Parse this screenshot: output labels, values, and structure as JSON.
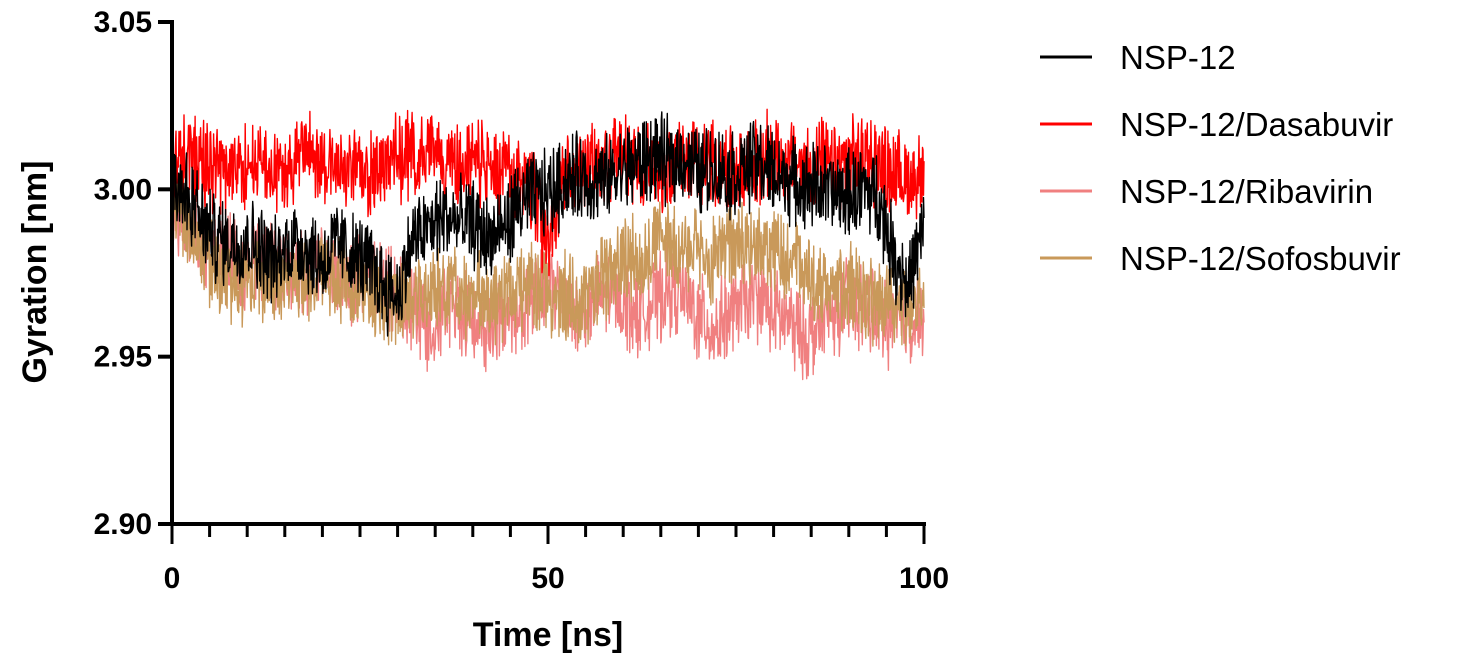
{
  "chart_data": {
    "type": "line",
    "xlabel": "Time [ns]",
    "ylabel": "Gyration [nm]",
    "xlim": [
      0,
      100
    ],
    "ylim": [
      2.9,
      3.05
    ],
    "x_ticks": [
      "0",
      "50",
      "100"
    ],
    "y_ticks": [
      "2.90",
      "2.95",
      "3.00",
      "3.05"
    ],
    "grid": false,
    "legend_position": "right",
    "series": [
      {
        "name": "NSP-12/Ribavirin",
        "color": "#F08080",
        "x": [
          0,
          2,
          4,
          6,
          8,
          10,
          12,
          14,
          16,
          18,
          20,
          22,
          24,
          26,
          28,
          30,
          32,
          34,
          36,
          38,
          40,
          42,
          44,
          46,
          48,
          50,
          52,
          54,
          56,
          58,
          60,
          62,
          64,
          66,
          68,
          70,
          72,
          74,
          76,
          78,
          80,
          82,
          84,
          86,
          88,
          90,
          92,
          94,
          96,
          98,
          100
        ],
        "y": [
          2.995,
          2.99,
          2.985,
          2.98,
          2.978,
          2.976,
          2.978,
          2.975,
          2.976,
          2.974,
          2.975,
          2.975,
          2.972,
          2.975,
          2.97,
          2.968,
          2.965,
          2.96,
          2.963,
          2.965,
          2.962,
          2.958,
          2.96,
          2.963,
          2.967,
          2.972,
          2.968,
          2.962,
          2.965,
          2.97,
          2.967,
          2.963,
          2.966,
          2.97,
          2.968,
          2.962,
          2.958,
          2.962,
          2.966,
          2.968,
          2.963,
          2.96,
          2.956,
          2.958,
          2.963,
          2.966,
          2.965,
          2.962,
          2.96,
          2.962,
          2.96
        ]
      },
      {
        "name": "NSP-12/Sofosbuvir",
        "color": "#C9995A",
        "x": [
          0,
          2,
          4,
          6,
          8,
          10,
          12,
          14,
          16,
          18,
          20,
          22,
          24,
          26,
          28,
          30,
          32,
          34,
          36,
          38,
          40,
          42,
          44,
          46,
          48,
          50,
          52,
          54,
          56,
          58,
          60,
          62,
          64,
          66,
          68,
          70,
          72,
          74,
          76,
          78,
          80,
          82,
          84,
          86,
          88,
          90,
          92,
          94,
          96,
          98,
          100
        ],
        "y": [
          2.998,
          2.99,
          2.982,
          2.975,
          2.972,
          2.974,
          2.973,
          2.972,
          2.975,
          2.972,
          2.975,
          2.973,
          2.971,
          2.972,
          2.966,
          2.965,
          2.968,
          2.97,
          2.972,
          2.97,
          2.968,
          2.966,
          2.968,
          2.97,
          2.972,
          2.97,
          2.968,
          2.966,
          2.97,
          2.975,
          2.978,
          2.98,
          2.983,
          2.985,
          2.982,
          2.98,
          2.978,
          2.982,
          2.985,
          2.983,
          2.981,
          2.978,
          2.975,
          2.972,
          2.972,
          2.97,
          2.968,
          2.966,
          2.965,
          2.964,
          2.965
        ]
      },
      {
        "name": "NSP-12/Dasabuvir",
        "color": "#FF0000",
        "x": [
          0,
          2,
          4,
          6,
          8,
          10,
          12,
          14,
          16,
          18,
          20,
          22,
          24,
          26,
          28,
          30,
          32,
          34,
          36,
          38,
          40,
          42,
          44,
          46,
          48,
          50,
          52,
          54,
          56,
          58,
          60,
          62,
          64,
          66,
          68,
          70,
          72,
          74,
          76,
          78,
          80,
          82,
          84,
          86,
          88,
          90,
          92,
          94,
          96,
          98,
          100
        ],
        "y": [
          3.005,
          3.01,
          3.008,
          3.005,
          3.007,
          3.006,
          3.008,
          3.004,
          3.008,
          3.012,
          3.009,
          3.007,
          3.006,
          3.004,
          3.008,
          3.01,
          3.009,
          3.012,
          3.01,
          3.008,
          3.008,
          3.006,
          3.005,
          3.004,
          3.0,
          2.982,
          3.002,
          3.006,
          3.008,
          3.008,
          3.01,
          3.008,
          3.006,
          3.007,
          3.009,
          3.01,
          3.008,
          3.006,
          3.005,
          3.008,
          3.01,
          3.008,
          3.006,
          3.008,
          3.006,
          3.008,
          3.01,
          3.008,
          3.005,
          3.003,
          3.005
        ]
      },
      {
        "name": "NSP-12",
        "color": "#000000",
        "x": [
          0,
          2,
          4,
          6,
          8,
          10,
          12,
          14,
          16,
          18,
          20,
          22,
          24,
          26,
          28,
          30,
          32,
          34,
          36,
          38,
          40,
          42,
          44,
          46,
          48,
          50,
          52,
          54,
          56,
          58,
          60,
          62,
          64,
          66,
          68,
          70,
          72,
          74,
          76,
          78,
          80,
          82,
          84,
          86,
          88,
          90,
          92,
          94,
          96,
          98,
          100
        ],
        "y": [
          3.005,
          2.998,
          2.99,
          2.985,
          2.984,
          2.985,
          2.982,
          2.978,
          2.985,
          2.982,
          2.978,
          2.984,
          2.98,
          2.978,
          2.972,
          2.968,
          2.985,
          2.988,
          2.992,
          2.99,
          2.99,
          2.985,
          2.988,
          2.995,
          2.998,
          2.999,
          3.002,
          3.004,
          3.002,
          3.003,
          3.006,
          3.008,
          3.01,
          3.008,
          3.01,
          3.005,
          3.007,
          3.004,
          3.006,
          3.008,
          3.005,
          3.003,
          3.0,
          3.002,
          2.998,
          2.999,
          3.0,
          2.998,
          2.98,
          2.972,
          2.988
        ]
      }
    ],
    "legend_order": [
      "NSP-12",
      "NSP-12/Dasabuvir",
      "NSP-12/Ribavirin",
      "NSP-12/Sofosbuvir"
    ]
  }
}
